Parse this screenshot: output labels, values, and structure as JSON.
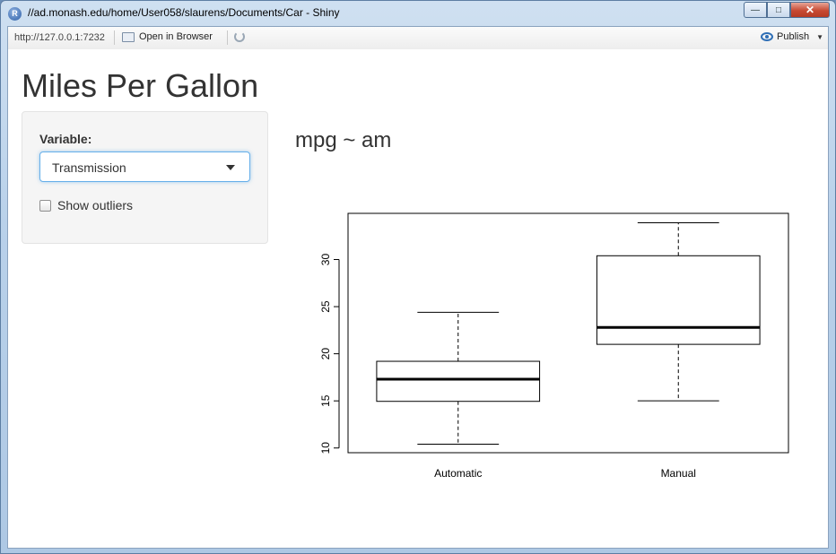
{
  "window": {
    "title": "//ad.monash.edu/home/User058/slaurens/Documents/Car - Shiny",
    "icon": "r-icon",
    "controls": [
      "minimize",
      "maximize",
      "close"
    ]
  },
  "toolbar": {
    "url": "http://127.0.0.1:7232",
    "open_in_browser": "Open in Browser",
    "publish": "Publish"
  },
  "app": {
    "title": "Miles Per Gallon",
    "variable_label": "Variable:",
    "variable_selected": "Transmission",
    "show_outliers_label": "Show outliers",
    "show_outliers_checked": false,
    "plot_title": "mpg ~ am"
  },
  "colors": {
    "focus_border": "#66afe9",
    "well_background": "#f5f5f5",
    "text": "#333333"
  },
  "chart_data": {
    "type": "boxplot",
    "categories": [
      "Automatic",
      "Manual"
    ],
    "boxes": [
      {
        "category": "Automatic",
        "min": 10.4,
        "q1": 14.95,
        "median": 17.3,
        "q3": 19.2,
        "max": 24.4
      },
      {
        "category": "Manual",
        "min": 15.0,
        "q1": 21.0,
        "median": 22.8,
        "q3": 30.4,
        "max": 33.9
      }
    ],
    "y_ticks": [
      10,
      15,
      20,
      25,
      30
    ],
    "ylim": [
      9.5,
      34.9
    ],
    "grid": false
  }
}
